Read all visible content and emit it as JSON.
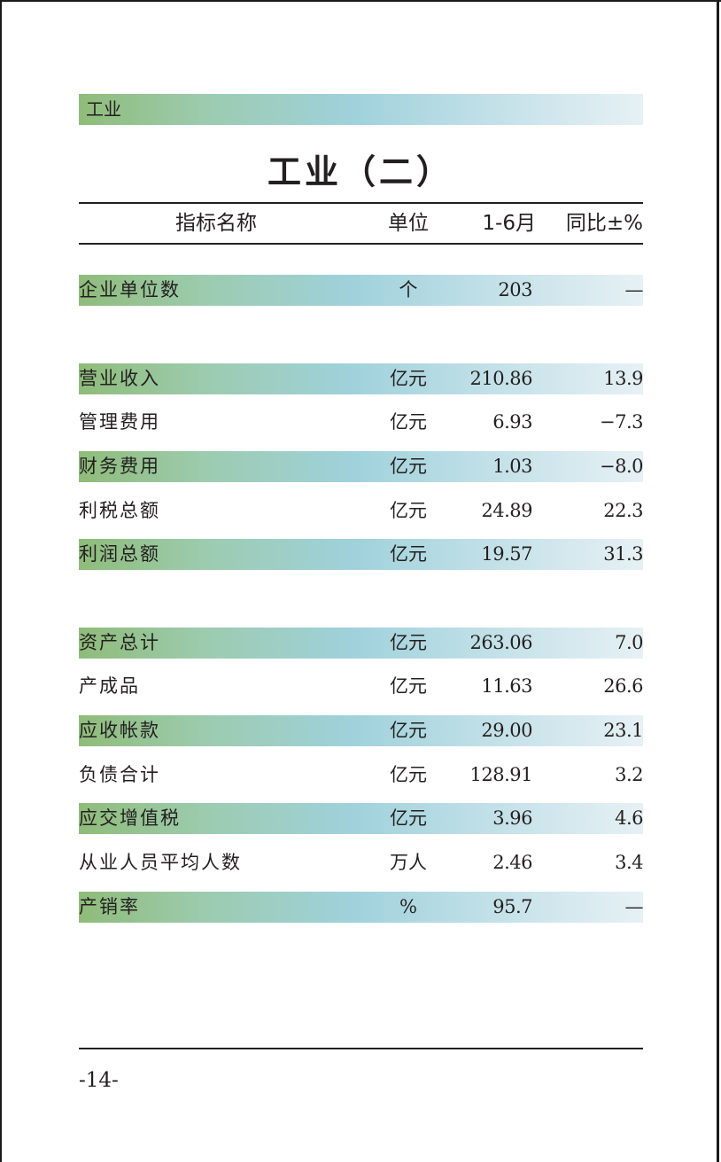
{
  "section_tag": "工业",
  "title": "工业（二）",
  "columns": {
    "name": "指标名称",
    "unit": "单位",
    "value": "1-6月",
    "change": "同比±%"
  },
  "rows": [
    {
      "name": "企业单位数",
      "unit": "个",
      "value": "203",
      "change": "—",
      "shaded": true
    },
    {
      "name": "营业收入",
      "unit": "亿元",
      "value": "210.86",
      "change": "13.9",
      "shaded": true
    },
    {
      "name": "管理费用",
      "unit": "亿元",
      "value": "6.93",
      "change": "−7.3",
      "shaded": false
    },
    {
      "name": "财务费用",
      "unit": "亿元",
      "value": "1.03",
      "change": "−8.0",
      "shaded": true
    },
    {
      "name": "利税总额",
      "unit": "亿元",
      "value": "24.89",
      "change": "22.3",
      "shaded": false
    },
    {
      "name": "利润总额",
      "unit": "亿元",
      "value": "19.57",
      "change": "31.3",
      "shaded": true
    },
    {
      "name": "资产总计",
      "unit": "亿元",
      "value": "263.06",
      "change": "7.0",
      "shaded": true
    },
    {
      "name": "产成品",
      "unit": "亿元",
      "value": "11.63",
      "change": "26.6",
      "shaded": false
    },
    {
      "name": "应收帐款",
      "unit": "亿元",
      "value": "29.00",
      "change": "23.1",
      "shaded": true
    },
    {
      "name": "负债合计",
      "unit": "亿元",
      "value": "128.91",
      "change": "3.2",
      "shaded": false
    },
    {
      "name": "应交增值税",
      "unit": "亿元",
      "value": "3.96",
      "change": "4.6",
      "shaded": true
    },
    {
      "name": "从业人员平均人数",
      "unit": "万人",
      "value": "2.46",
      "change": "3.4",
      "shaded": false
    },
    {
      "name": "产销率",
      "unit": "%",
      "value": "95.7",
      "change": "—",
      "shaded": true
    }
  ],
  "page_number": "-14-"
}
